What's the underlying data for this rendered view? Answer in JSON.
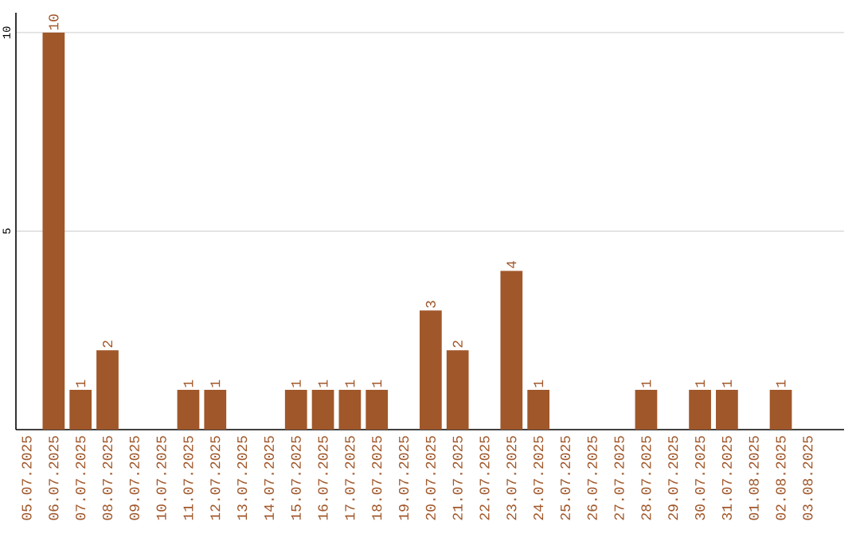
{
  "chart_data": {
    "type": "bar",
    "categories": [
      "05.07.2025",
      "06.07.2025",
      "07.07.2025",
      "08.07.2025",
      "09.07.2025",
      "10.07.2025",
      "11.07.2025",
      "12.07.2025",
      "13.07.2025",
      "14.07.2025",
      "15.07.2025",
      "16.07.2025",
      "17.07.2025",
      "18.07.2025",
      "19.07.2025",
      "20.07.2025",
      "21.07.2025",
      "22.07.2025",
      "23.07.2025",
      "24.07.2025",
      "25.07.2025",
      "26.07.2025",
      "27.07.2025",
      "28.07.2025",
      "29.07.2025",
      "30.07.2025",
      "31.07.2025",
      "01.08.2025",
      "02.08.2025",
      "03.08.2025"
    ],
    "values": [
      0,
      10,
      1,
      2,
      0,
      0,
      1,
      1,
      0,
      0,
      1,
      1,
      1,
      1,
      0,
      3,
      2,
      0,
      4,
      1,
      0,
      0,
      0,
      1,
      0,
      1,
      1,
      0,
      1,
      0
    ],
    "value_labels": [
      null,
      "10",
      "1",
      "2",
      null,
      null,
      "1",
      "1",
      null,
      null,
      "1",
      "1",
      "1",
      "1",
      null,
      "3",
      "2",
      null,
      "4",
      "1",
      null,
      null,
      null,
      "1",
      null,
      "1",
      "1",
      null,
      "1",
      null
    ],
    "color": "#a0572a",
    "ylim": [
      0,
      10.5
    ],
    "yticks": [
      5,
      10
    ],
    "grid": "y"
  }
}
